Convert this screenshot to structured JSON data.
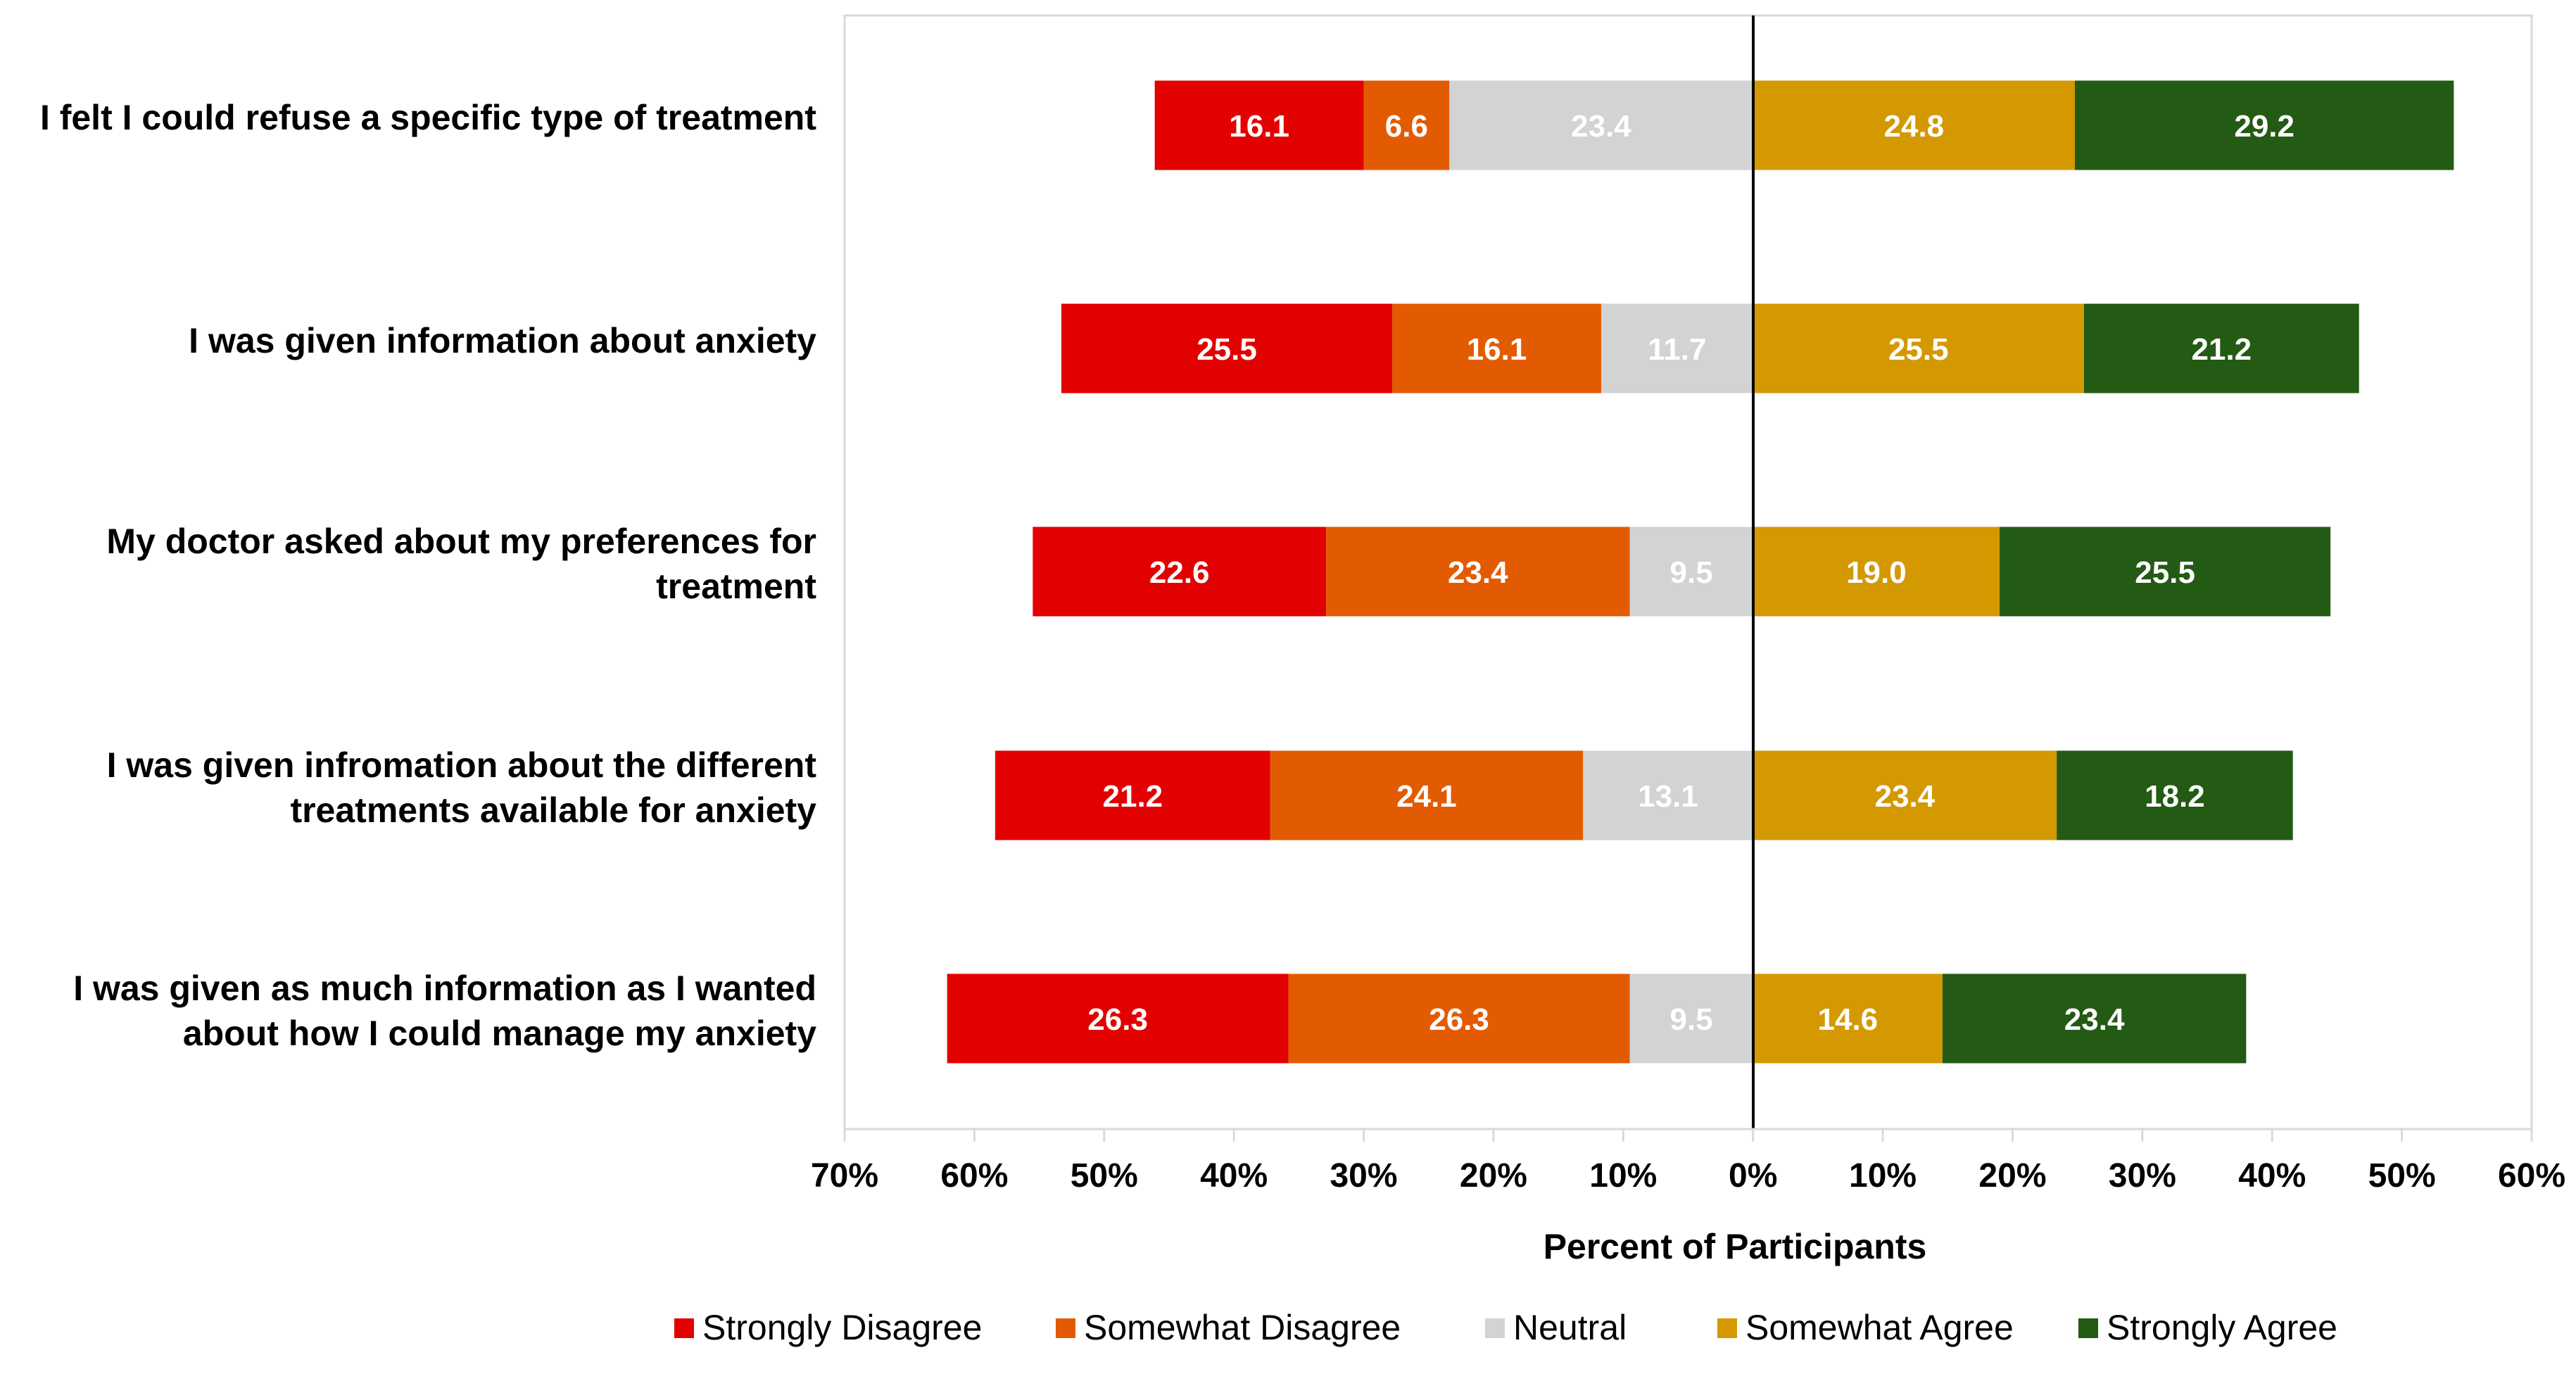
{
  "chart_data": {
    "type": "bar",
    "orientation": "horizontal-diverging-stacked",
    "title": "",
    "xlabel": "Percent of Participants",
    "ylabel": "",
    "xlim": [
      -70,
      60
    ],
    "x_ticks": [
      -70,
      -60,
      -50,
      -40,
      -30,
      -20,
      -10,
      0,
      10,
      20,
      30,
      40,
      50,
      60
    ],
    "x_tick_labels": [
      "70%",
      "60%",
      "50%",
      "40%",
      "30%",
      "20%",
      "10%",
      "0%",
      "10%",
      "20%",
      "30%",
      "40%",
      "50%",
      "60%"
    ],
    "grid": false,
    "legend_position": "bottom",
    "categories": [
      [
        "I felt I could refuse a specific type of treatment"
      ],
      [
        "I was given information about anxiety"
      ],
      [
        "My doctor asked about my preferences for",
        "treatment"
      ],
      [
        "I was given infromation about the different",
        "treatments available for anxiety"
      ],
      [
        "I was given as much information as I wanted",
        "about how I could manage my anxiety"
      ]
    ],
    "series": [
      {
        "name": "Strongly Disagree",
        "side": "negative",
        "color": "#E30000",
        "label_color": "#FFFFFF",
        "values": [
          16.1,
          25.5,
          22.6,
          21.2,
          26.3
        ],
        "labels": [
          "16.1",
          "25.5",
          "22.6",
          "21.2",
          "26.3"
        ]
      },
      {
        "name": "Somewhat Disagree",
        "side": "negative",
        "color": "#E35B00",
        "label_color": "#FFFFFF",
        "values": [
          6.6,
          16.1,
          23.4,
          24.1,
          26.3
        ],
        "labels": [
          "6.6",
          "16.1",
          "23.4",
          "24.1",
          "26.3"
        ]
      },
      {
        "name": "Neutral",
        "side": "negative",
        "color": "#D3D3D3",
        "label_color": "#FFFFFF",
        "values": [
          23.4,
          11.7,
          9.5,
          13.1,
          9.5
        ],
        "labels": [
          "23.4",
          "11.7",
          "9.5",
          "13.1",
          "9.5"
        ]
      },
      {
        "name": "Somewhat Agree",
        "side": "positive",
        "color": "#D49800",
        "label_color": "#FFFFFF",
        "values": [
          24.8,
          25.5,
          19.0,
          23.4,
          14.6
        ],
        "labels": [
          "24.8",
          "25.5",
          "19.0",
          "23.4",
          "14.6"
        ]
      },
      {
        "name": "Strongly Agree",
        "side": "positive",
        "color": "#235A14",
        "label_color": "#FFFFFF",
        "values": [
          29.2,
          21.2,
          25.5,
          18.2,
          23.4
        ],
        "labels": [
          "29.2",
          "21.2",
          "25.5",
          "18.2",
          "23.4"
        ]
      }
    ]
  }
}
